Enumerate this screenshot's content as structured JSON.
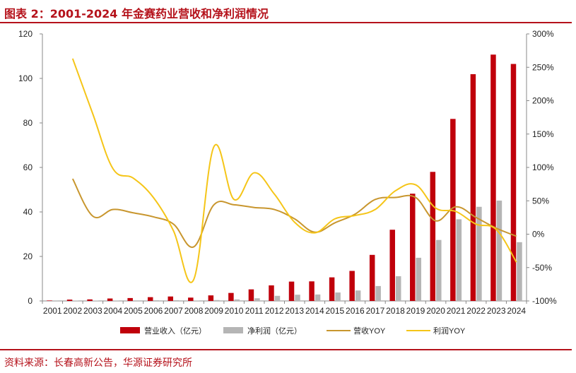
{
  "header": {
    "title": "图表 2：2001-2024 年金赛药业营收和净利润情况"
  },
  "footer": {
    "source": "资料来源：长春高新公告，华源证券研究所"
  },
  "colors": {
    "revenue": "#c0000b",
    "profit": "#b5b5b5",
    "revenue_yoy": "#c8962e",
    "profit_yoy": "#f5c518",
    "accent": "#b5121b"
  },
  "chart_data": {
    "type": "bar",
    "categories": [
      "2001",
      "2002",
      "2003",
      "2004",
      "2005",
      "2006",
      "2007",
      "2008",
      "2009",
      "2010",
      "2011",
      "2012",
      "2013",
      "2014",
      "2015",
      "2016",
      "2017",
      "2018",
      "2019",
      "2020",
      "2021",
      "2022",
      "2023",
      "2024"
    ],
    "series": [
      {
        "name": "营业收入（亿元）",
        "type": "bar",
        "axis": "left",
        "values": [
          0.2,
          0.6,
          0.7,
          1.1,
          1.3,
          1.7,
          2.0,
          1.5,
          2.5,
          3.6,
          5.2,
          7.0,
          8.7,
          8.8,
          10.6,
          13.5,
          20.7,
          32.0,
          48.2,
          58.0,
          81.8,
          101.9,
          110.7,
          106.5
        ]
      },
      {
        "name": "净利润（亿元）",
        "type": "bar",
        "axis": "left",
        "values": [
          0.05,
          0.1,
          0.12,
          0.2,
          0.25,
          0.3,
          0.35,
          0.2,
          0.4,
          0.7,
          1.2,
          2.3,
          2.8,
          2.9,
          3.8,
          4.7,
          6.7,
          11.1,
          19.4,
          27.4,
          36.7,
          42.3,
          45.1,
          26.4
        ]
      },
      {
        "name": "营收YOY",
        "type": "line",
        "axis": "right",
        "values": [
          null,
          83,
          27,
          37,
          32,
          26,
          15,
          -19,
          44,
          44,
          40,
          37,
          23,
          3,
          17,
          30,
          52,
          55,
          55,
          20,
          41,
          25,
          9,
          -3
        ]
      },
      {
        "name": "利润YOY",
        "type": "line",
        "axis": "right",
        "values": [
          null,
          263,
          180,
          98,
          84,
          55,
          5,
          -68,
          131,
          52,
          92,
          60,
          18,
          2,
          23,
          28,
          37,
          65,
          74,
          39,
          34,
          15,
          7,
          -42
        ]
      }
    ],
    "left_axis": {
      "min": 0,
      "max": 120,
      "ticks": [
        "0",
        "20",
        "40",
        "60",
        "80",
        "100",
        "120"
      ]
    },
    "right_axis": {
      "min": -100,
      "max": 300,
      "ticks": [
        "-100%",
        "-50%",
        "0%",
        "50%",
        "100%",
        "150%",
        "200%",
        "250%",
        "300%"
      ]
    },
    "grid": false,
    "legend_position": "bottom"
  }
}
